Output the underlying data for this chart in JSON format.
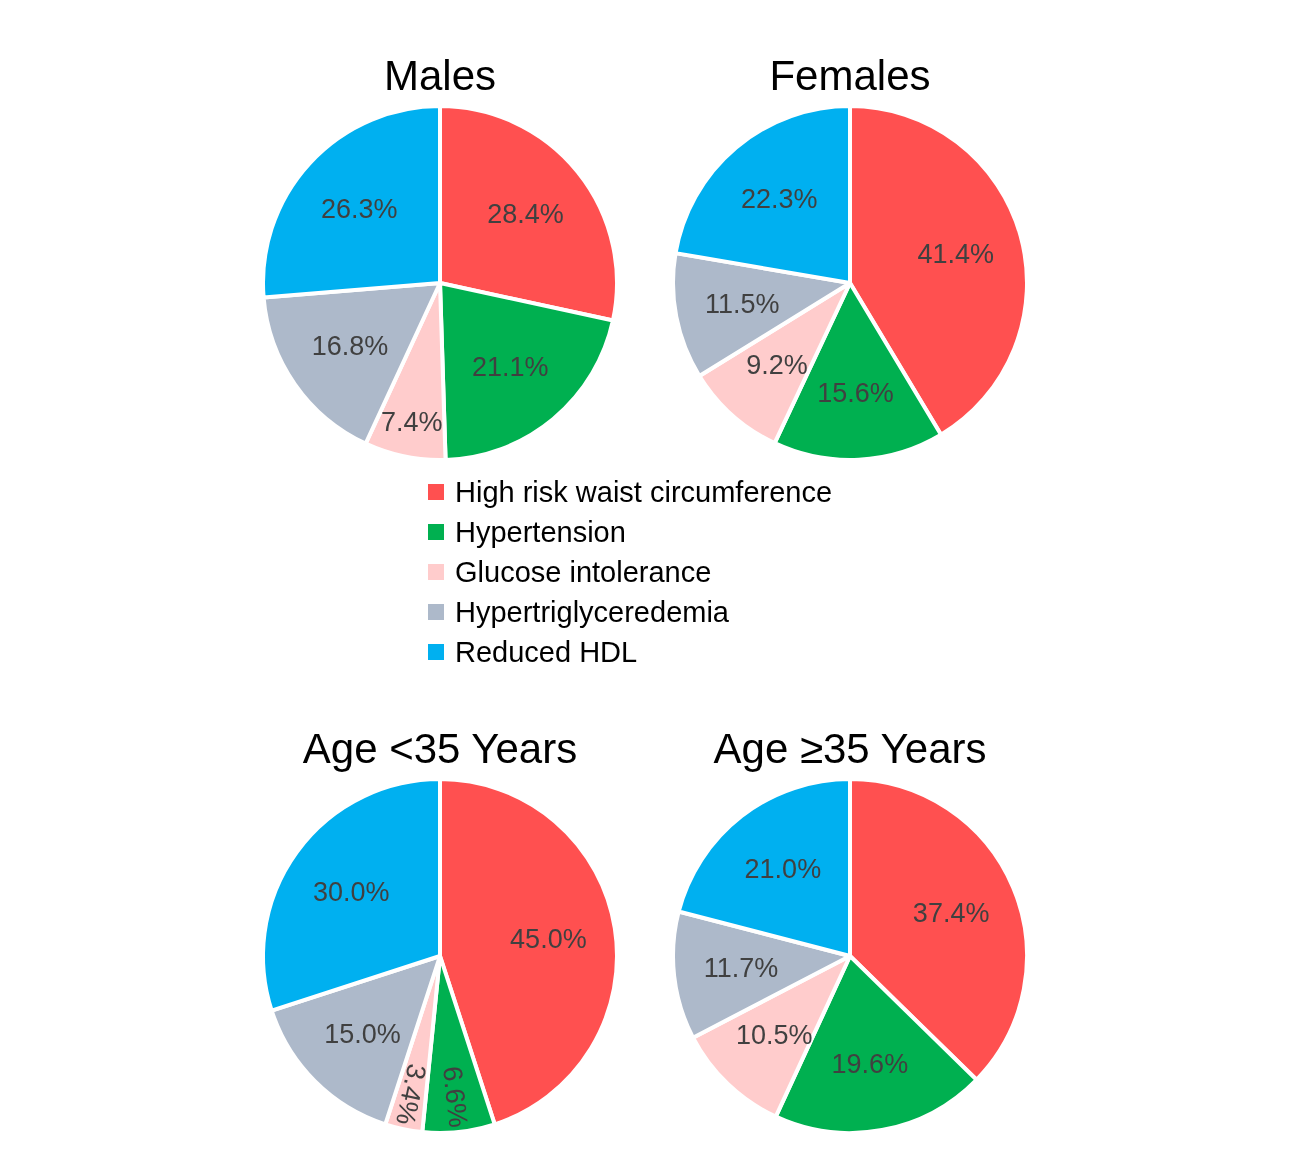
{
  "chart_data": [
    {
      "type": "pie",
      "title": "Males",
      "categories": [
        "High risk waist circumference",
        "Hypertension",
        "Glucose intolerance",
        "Hypertriglyceredemia",
        "Reduced HDL"
      ],
      "values": [
        28.4,
        21.1,
        7.4,
        16.8,
        26.3
      ],
      "value_labels": [
        "28.4%",
        "21.1%",
        "7.4%",
        "16.8%",
        "26.3%"
      ],
      "colors": [
        "#ff5050",
        "#00b050",
        "#ffcccc",
        "#adb9ca",
        "#00b0f0"
      ],
      "legend": "bottom"
    },
    {
      "type": "pie",
      "title": "Females",
      "categories": [
        null,
        null,
        null,
        null,
        null
      ],
      "values": [
        41.4,
        15.6,
        9.2,
        11.5,
        22.3
      ],
      "value_labels": [
        "41.4%",
        "15.6%",
        "9.2%",
        "11.5%",
        "22.3%"
      ],
      "colors": [
        "#ff5050",
        "#00b050",
        "#ffcccc",
        "#adb9ca",
        "#00b0f0"
      ]
    },
    {
      "type": "pie",
      "title": "Age <35 Years",
      "categories": [
        null,
        null,
        null,
        null,
        null
      ],
      "values": [
        45.0,
        6.6,
        3.4,
        15.0,
        30.0
      ],
      "value_labels": [
        "45.0%",
        "6.6%",
        "3.4%",
        "15.0%",
        "30.0%"
      ],
      "colors": [
        "#ff5050",
        "#00b050",
        "#ffcccc",
        "#adb9ca",
        "#00b0f0"
      ]
    },
    {
      "type": "pie",
      "title": "Age ≥35 Years",
      "categories": [
        null,
        null,
        null,
        null,
        null
      ],
      "values": [
        37.4,
        19.6,
        10.5,
        11.7,
        21.0
      ],
      "value_labels": [
        "37.4%",
        "19.6%",
        "10.5%",
        "11.7%",
        "21.0%"
      ],
      "colors": [
        "#ff5050",
        "#00b050",
        "#ffcccc",
        "#adb9ca",
        "#00b0f0"
      ]
    }
  ]
}
